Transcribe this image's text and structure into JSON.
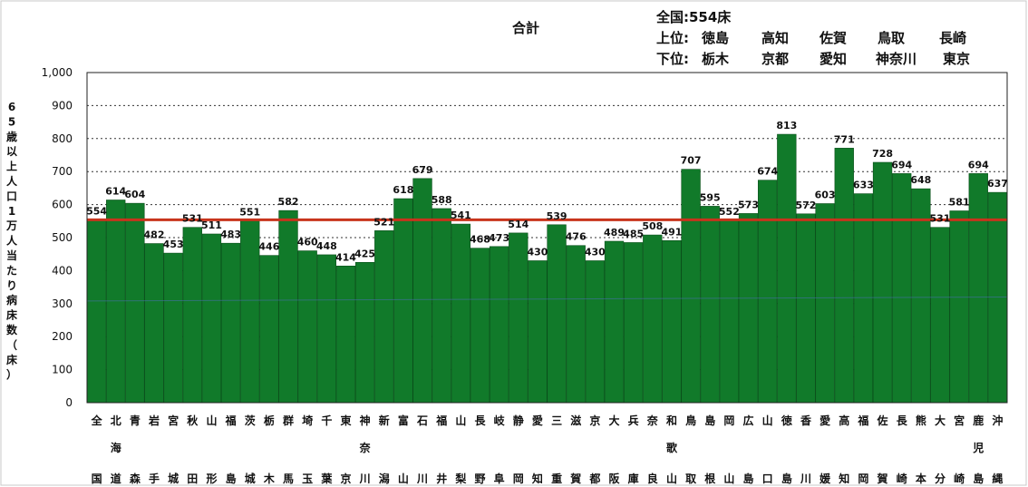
{
  "chart_data": {
    "type": "bar",
    "title": "合計",
    "ylabel": "65歳以上人口1万人当たり病床数（床）",
    "xlabel": "",
    "ylim": [
      0,
      1000
    ],
    "yticks": [
      "0",
      "100",
      "200",
      "300",
      "400",
      "500",
      "600",
      "700",
      "800",
      "900",
      "1,000"
    ],
    "grid": "horizontal-dotted",
    "categories": [
      [
        "全",
        "",
        "国"
      ],
      [
        "北",
        "海",
        "道"
      ],
      [
        "青",
        "",
        "森"
      ],
      [
        "岩",
        "",
        "手"
      ],
      [
        "宮",
        "",
        "城"
      ],
      [
        "秋",
        "",
        "田"
      ],
      [
        "山",
        "",
        "形"
      ],
      [
        "福",
        "",
        "島"
      ],
      [
        "茨",
        "",
        "城"
      ],
      [
        "栃",
        "",
        "木"
      ],
      [
        "群",
        "",
        "馬"
      ],
      [
        "埼",
        "",
        "玉"
      ],
      [
        "千",
        "",
        "葉"
      ],
      [
        "東",
        "",
        "京"
      ],
      [
        "神",
        "奈",
        "川"
      ],
      [
        "新",
        "",
        "潟"
      ],
      [
        "富",
        "",
        "山"
      ],
      [
        "石",
        "",
        "川"
      ],
      [
        "福",
        "",
        "井"
      ],
      [
        "山",
        "",
        "梨"
      ],
      [
        "長",
        "",
        "野"
      ],
      [
        "岐",
        "",
        "阜"
      ],
      [
        "静",
        "",
        "岡"
      ],
      [
        "愛",
        "",
        "知"
      ],
      [
        "三",
        "",
        "重"
      ],
      [
        "滋",
        "",
        "賀"
      ],
      [
        "京",
        "",
        "都"
      ],
      [
        "大",
        "",
        "阪"
      ],
      [
        "兵",
        "",
        "庫"
      ],
      [
        "奈",
        "",
        "良"
      ],
      [
        "和",
        "歌",
        "山"
      ],
      [
        "鳥",
        "",
        "取"
      ],
      [
        "島",
        "",
        "根"
      ],
      [
        "岡",
        "",
        "山"
      ],
      [
        "広",
        "",
        "島"
      ],
      [
        "山",
        "",
        "口"
      ],
      [
        "徳",
        "",
        "島"
      ],
      [
        "香",
        "",
        "川"
      ],
      [
        "愛",
        "",
        "媛"
      ],
      [
        "高",
        "",
        "知"
      ],
      [
        "福",
        "",
        "岡"
      ],
      [
        "佐",
        "",
        "賀"
      ],
      [
        "長",
        "",
        "崎"
      ],
      [
        "熊",
        "",
        "本"
      ],
      [
        "大",
        "",
        "分"
      ],
      [
        "宮",
        "",
        "崎"
      ],
      [
        "鹿",
        "児",
        "島"
      ],
      [
        "沖",
        "",
        "縄"
      ]
    ],
    "values": [
      554,
      614,
      604,
      482,
      453,
      531,
      511,
      483,
      551,
      446,
      582,
      460,
      448,
      414,
      425,
      521,
      618,
      679,
      588,
      541,
      468,
      473,
      514,
      430,
      539,
      476,
      430,
      489,
      485,
      508,
      491,
      707,
      595,
      552,
      573,
      674,
      813,
      572,
      603,
      771,
      633,
      728,
      694,
      648,
      531,
      581,
      694,
      637
    ],
    "value_labels": [
      "554",
      "614",
      "604",
      "482",
      "453",
      "531",
      "511",
      "483",
      "551",
      "446",
      "582",
      "460",
      "448",
      "414",
      "425",
      "521",
      "618",
      "679",
      "588",
      "541",
      "468",
      "473",
      "514",
      "430",
      "539",
      "476",
      "430",
      "489",
      "485",
      "508",
      "491",
      "707",
      "595",
      "552",
      "573",
      "674",
      "813",
      "572",
      "603",
      "771",
      "633",
      "728",
      "694",
      "648",
      "531",
      "581",
      "694",
      "637"
    ],
    "reference_line": 554,
    "colors": {
      "bar": "#117a2a",
      "bar_edge": "#0a4f1a",
      "reference": "#c8341c",
      "faint_line": "#4a6fb5"
    }
  },
  "summary": {
    "national": "全国:554床",
    "top": {
      "label": "上位:",
      "items": [
        "徳島",
        "高知",
        "佐賀",
        "鳥取",
        "長崎"
      ]
    },
    "bottom": {
      "label": "下位:",
      "items": [
        "栃木",
        "京都",
        "愛知",
        "神奈川",
        "東京"
      ]
    }
  }
}
